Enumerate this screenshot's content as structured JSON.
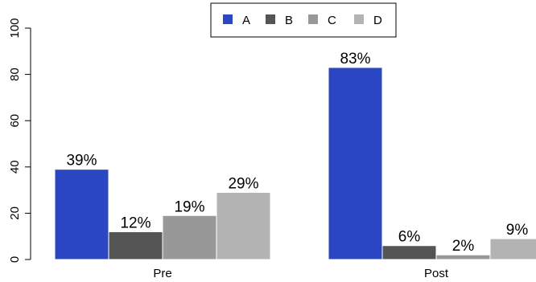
{
  "chart_data": {
    "type": "bar",
    "categories": [
      "Pre",
      "Post"
    ],
    "series": [
      {
        "name": "A",
        "values": [
          39,
          83
        ],
        "color": "#2b46c2"
      },
      {
        "name": "B",
        "values": [
          12,
          6
        ],
        "color": "#555555"
      },
      {
        "name": "C",
        "values": [
          19,
          2
        ],
        "color": "#989898"
      },
      {
        "name": "D",
        "values": [
          29,
          9
        ],
        "color": "#b3b3b3"
      }
    ],
    "data_labels": [
      [
        "39%",
        "83%"
      ],
      [
        "12%",
        "6%"
      ],
      [
        "19%",
        "2%"
      ],
      [
        "29%",
        "9%"
      ]
    ],
    "yticks": [
      0,
      20,
      40,
      60,
      80,
      100
    ],
    "ylim": [
      0,
      100
    ],
    "title": "",
    "xlabel": "",
    "ylabel": "",
    "legend_position": "top-center",
    "grid": false
  }
}
